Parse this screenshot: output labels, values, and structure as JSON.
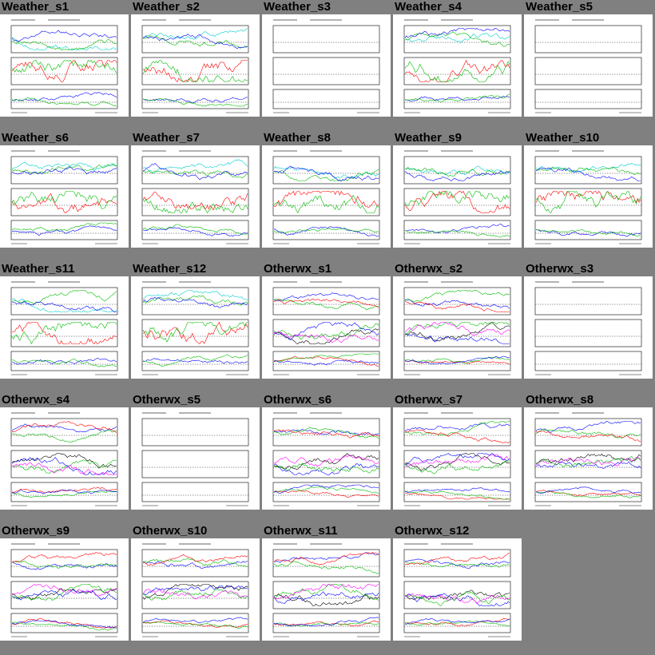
{
  "gallery": {
    "thumbnails": [
      {
        "title": "Weather_s1",
        "kind": "weather",
        "empty": false
      },
      {
        "title": "Weather_s2",
        "kind": "weather",
        "empty": false
      },
      {
        "title": "Weather_s3",
        "kind": "weather",
        "empty": true
      },
      {
        "title": "Weather_s4",
        "kind": "weather",
        "empty": false
      },
      {
        "title": "Weather_s5",
        "kind": "weather",
        "empty": true
      },
      {
        "title": "Weather_s6",
        "kind": "weather",
        "empty": false
      },
      {
        "title": "Weather_s7",
        "kind": "weather",
        "empty": false
      },
      {
        "title": "Weather_s8",
        "kind": "weather",
        "empty": false
      },
      {
        "title": "Weather_s9",
        "kind": "weather",
        "empty": false
      },
      {
        "title": "Weather_s10",
        "kind": "weather",
        "empty": false
      },
      {
        "title": "Weather_s11",
        "kind": "weather",
        "empty": false
      },
      {
        "title": "Weather_s12",
        "kind": "weather",
        "empty": false
      },
      {
        "title": "Otherwx_s1",
        "kind": "otherwx",
        "empty": false
      },
      {
        "title": "Otherwx_s2",
        "kind": "otherwx",
        "empty": false
      },
      {
        "title": "Otherwx_s3",
        "kind": "otherwx",
        "empty": true
      },
      {
        "title": "Otherwx_s4",
        "kind": "otherwx",
        "empty": false
      },
      {
        "title": "Otherwx_s5",
        "kind": "otherwx",
        "empty": true
      },
      {
        "title": "Otherwx_s6",
        "kind": "otherwx",
        "empty": false
      },
      {
        "title": "Otherwx_s7",
        "kind": "otherwx",
        "empty": false
      },
      {
        "title": "Otherwx_s8",
        "kind": "otherwx",
        "empty": false
      },
      {
        "title": "Otherwx_s9",
        "kind": "otherwx",
        "empty": false
      },
      {
        "title": "Otherwx_s10",
        "kind": "otherwx",
        "empty": false
      },
      {
        "title": "Otherwx_s11",
        "kind": "otherwx",
        "empty": false
      },
      {
        "title": "Otherwx_s12",
        "kind": "otherwx",
        "empty": false
      }
    ]
  },
  "colors": {
    "page_background": "#808080",
    "panel_background": "#ffffff",
    "series": [
      "#ff0000",
      "#00bb00",
      "#0000ff",
      "#00cccc",
      "#ff00ff",
      "#000000"
    ]
  }
}
